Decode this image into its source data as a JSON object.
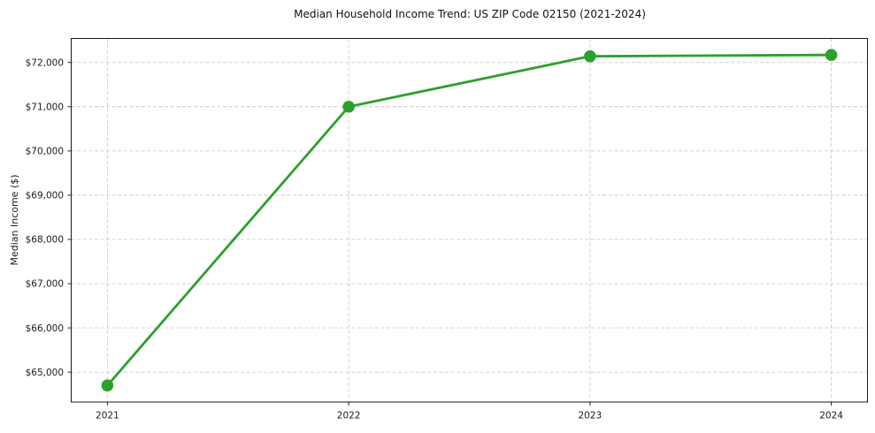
{
  "chart_data": {
    "type": "line",
    "title": "Median Household Income Trend: US ZIP Code 02150 (2021-2024)",
    "xlabel": "",
    "ylabel": "Median Income ($)",
    "x": [
      2021,
      2022,
      2023,
      2024
    ],
    "x_tick_labels": [
      "2021",
      "2022",
      "2023",
      "2024"
    ],
    "values": [
      64700,
      71000,
      72140,
      72170
    ],
    "y_ticks": [
      65000,
      66000,
      67000,
      68000,
      69000,
      70000,
      71000,
      72000
    ],
    "y_tick_labels": [
      "$65,000",
      "$66,000",
      "$67,000",
      "$68,000",
      "$69,000",
      "$70,000",
      "$71,000",
      "$72,000"
    ],
    "ylim": [
      64324,
      72543
    ],
    "xlim": [
      2020.85,
      2024.15
    ],
    "grid": true,
    "grid_style": "dashed",
    "legend": "none",
    "line_color": "#2ca02c",
    "marker_color": "#2ca02c",
    "marker_shape": "circle",
    "background_color": "#ffffff"
  }
}
